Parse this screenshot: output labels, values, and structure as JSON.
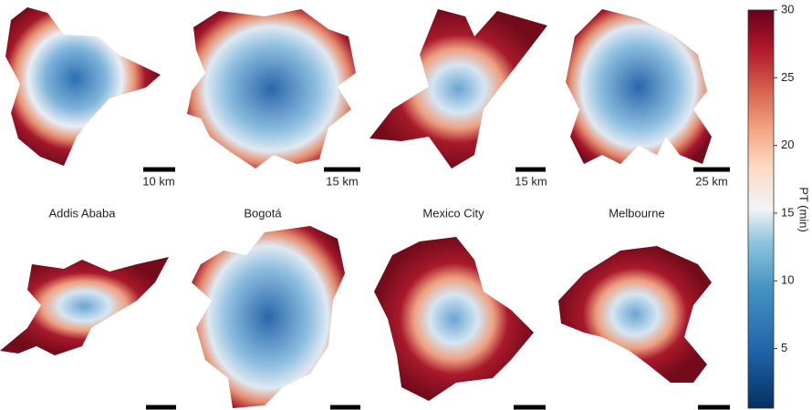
{
  "panels": [
    {
      "name": "Addis Ababa",
      "scale_top": "10 km"
    },
    {
      "name": "Bogotá",
      "scale_top": "15 km"
    },
    {
      "name": "Mexico City",
      "scale_top": "15 km"
    },
    {
      "name": "Melbourne",
      "scale_top": "25 km"
    }
  ],
  "colorbar": {
    "label": "PT (min)",
    "range": [
      0.6,
      30
    ],
    "ticks": [
      5,
      10,
      15,
      20,
      25,
      30
    ]
  }
}
